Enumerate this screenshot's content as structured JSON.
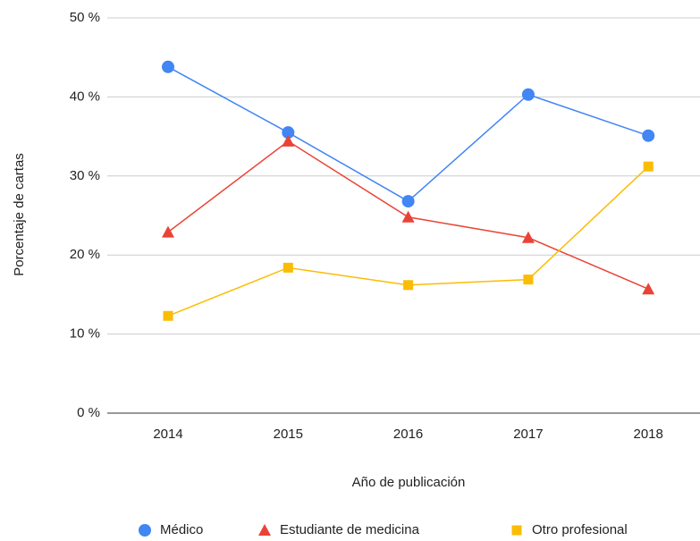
{
  "chart_data": {
    "type": "line",
    "y_label": "Porcentaje de cartas",
    "x_label": "Año de publicación",
    "categories": [
      "2014",
      "2015",
      "2016",
      "2017",
      "2018"
    ],
    "series": [
      {
        "name": "Médico",
        "color": "#4285f4",
        "marker": "circle",
        "values": [
          43.8,
          35.5,
          26.8,
          40.3,
          35.1
        ]
      },
      {
        "name": "Estudiante de medicina",
        "color": "#ea4335",
        "marker": "triangle",
        "values": [
          22.9,
          34.4,
          24.8,
          22.2,
          15.7
        ]
      },
      {
        "name": "Otro profesional",
        "color": "#fbbc04",
        "marker": "square",
        "values": [
          12.3,
          18.4,
          16.2,
          16.9,
          31.2
        ]
      }
    ],
    "ylim": [
      0,
      50
    ],
    "yticks": [
      {
        "value": 0,
        "label": "0 %"
      },
      {
        "value": 10,
        "label": "10 %"
      },
      {
        "value": 20,
        "label": "20 %"
      },
      {
        "value": 30,
        "label": "30 %"
      },
      {
        "value": 40,
        "label": "40 %"
      },
      {
        "value": 50,
        "label": "50 %"
      }
    ],
    "grid": true,
    "legend": "bottom"
  }
}
